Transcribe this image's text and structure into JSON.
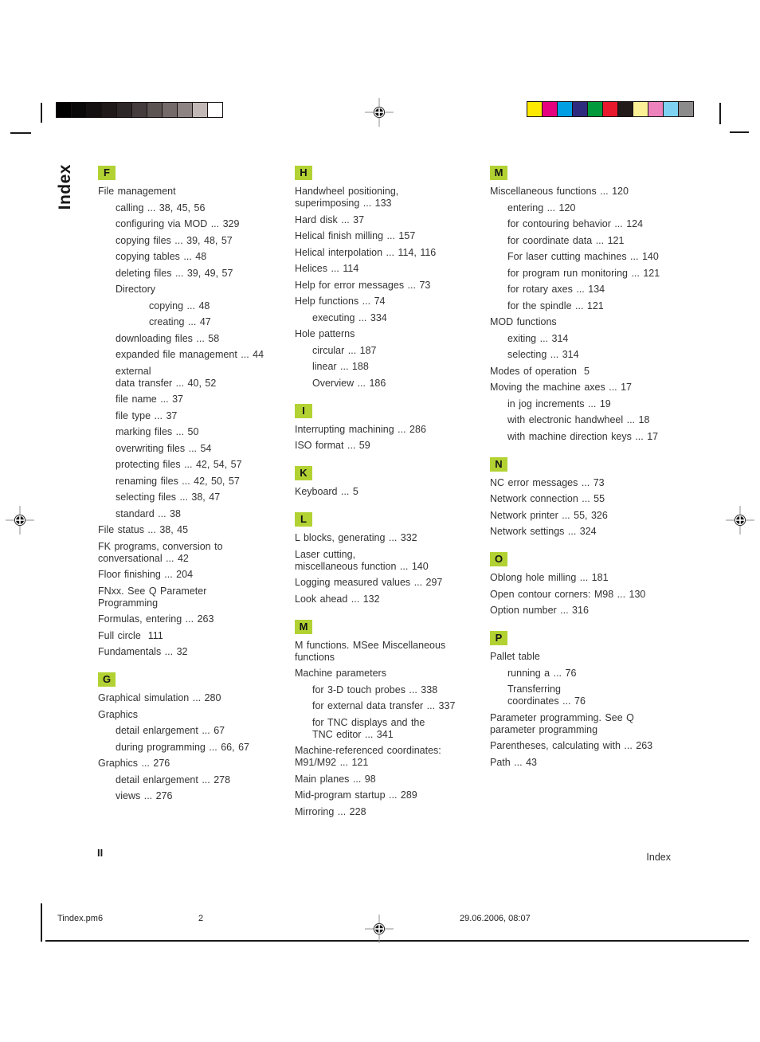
{
  "sidebar": {
    "label": "Index"
  },
  "footer": {
    "page_roman": "II",
    "right_label": "Index"
  },
  "print_info": {
    "file_name": "Tindex.pm6",
    "sheet_number": "2",
    "datetime": "29.06.2006, 08:07"
  },
  "colors": {
    "section_badge_bg": "#b2d233",
    "text": "#333333"
  },
  "calibration": {
    "grayscale": [
      "#000000",
      "#0b0809",
      "#140f10",
      "#1f191a",
      "#2e2727",
      "#453d3d",
      "#5c5353",
      "#746a6a",
      "#8d8383",
      "#c2b9b7",
      "#ffffff"
    ],
    "colors": [
      "#fde800",
      "#e6017e",
      "#009fe3",
      "#2e2a7e",
      "#009a3d",
      "#e8192c",
      "#231a1a",
      "#fbf095",
      "#ee82bd",
      "#7fd3f2",
      "#8b8b8b"
    ]
  },
  "index": {
    "columns": [
      {
        "sections": [
          {
            "letter": "F",
            "entries": [
              {
                "level": 0,
                "text": "File management"
              },
              {
                "level": 1,
                "text": "calling ... 38, 45, 56"
              },
              {
                "level": 1,
                "text": "configuring via MOD ... 329"
              },
              {
                "level": 1,
                "text": "copying files ... 39, 48, 57"
              },
              {
                "level": 1,
                "text": "copying tables ... 48"
              },
              {
                "level": 1,
                "text": "deleting files ... 39, 49, 57"
              },
              {
                "level": 1,
                "text": "Directory"
              },
              {
                "level": 2,
                "text": "copying ... 48"
              },
              {
                "level": 2,
                "text": "creating ... 47"
              },
              {
                "level": 1,
                "text": "downloading files ... 58"
              },
              {
                "level": 1,
                "text": "expanded file management ... 44"
              },
              {
                "level": 1,
                "text": "external\ndata transfer ... 40, 52"
              },
              {
                "level": 1,
                "text": "file name ... 37"
              },
              {
                "level": 1,
                "text": "file type ... 37"
              },
              {
                "level": 1,
                "text": "marking files ... 50"
              },
              {
                "level": 1,
                "text": "overwriting files ... 54"
              },
              {
                "level": 1,
                "text": "protecting files ... 42, 54, 57"
              },
              {
                "level": 1,
                "text": "renaming files ... 42, 50, 57"
              },
              {
                "level": 1,
                "text": "selecting files ... 38, 47"
              },
              {
                "level": 1,
                "text": "standard ... 38"
              },
              {
                "level": 0,
                "text": "File status ... 38, 45"
              },
              {
                "level": 0,
                "text": "FK programs, conversion to\nconversational ... 42"
              },
              {
                "level": 0,
                "text": "Floor finishing ... 204"
              },
              {
                "level": 0,
                "text": "FNxx. See Q Parameter\nProgramming"
              },
              {
                "level": 0,
                "text": "Formulas, entering ... 263"
              },
              {
                "level": 0,
                "text": "Full circle  111"
              },
              {
                "level": 0,
                "text": "Fundamentals ... 32"
              }
            ]
          },
          {
            "letter": "G",
            "entries": [
              {
                "level": 0,
                "text": "Graphical simulation ... 280"
              },
              {
                "level": 0,
                "text": "Graphics"
              },
              {
                "level": 1,
                "text": "detail enlargement ... 67"
              },
              {
                "level": 1,
                "text": "during programming ... 66, 67"
              },
              {
                "level": 0,
                "text": "Graphics ... 276"
              },
              {
                "level": 1,
                "text": "detail enlargement ... 278"
              },
              {
                "level": 1,
                "text": "views ... 276"
              }
            ]
          }
        ]
      },
      {
        "sections": [
          {
            "letter": "H",
            "entries": [
              {
                "level": 0,
                "text": "Handwheel positioning,\nsuperimposing ... 133"
              },
              {
                "level": 0,
                "text": "Hard disk ... 37"
              },
              {
                "level": 0,
                "text": "Helical finish milling ... 157"
              },
              {
                "level": 0,
                "text": "Helical interpolation ... 114, 116"
              },
              {
                "level": 0,
                "text": "Helices ... 114"
              },
              {
                "level": 0,
                "text": "Help for error messages ... 73"
              },
              {
                "level": 0,
                "text": "Help functions ... 74"
              },
              {
                "level": 1,
                "text": "executing ... 334"
              },
              {
                "level": 0,
                "text": "Hole patterns"
              },
              {
                "level": 1,
                "text": "circular ... 187"
              },
              {
                "level": 1,
                "text": "linear ... 188"
              },
              {
                "level": 1,
                "text": "Overview ... 186"
              }
            ]
          },
          {
            "letter": "I",
            "entries": [
              {
                "level": 0,
                "text": "Interrupting machining ... 286"
              },
              {
                "level": 0,
                "text": "ISO format ... 59"
              }
            ]
          },
          {
            "letter": "K",
            "entries": [
              {
                "level": 0,
                "text": "Keyboard ... 5"
              }
            ]
          },
          {
            "letter": "L",
            "entries": [
              {
                "level": 0,
                "text": "L blocks, generating ... 332"
              },
              {
                "level": 0,
                "text": "Laser cutting,\nmiscellaneous function ... 140"
              },
              {
                "level": 0,
                "text": "Logging measured values ... 297"
              },
              {
                "level": 0,
                "text": "Look ahead ... 132"
              }
            ]
          },
          {
            "letter": "M",
            "entries": [
              {
                "level": 0,
                "text": "M functions. MSee Miscellaneous\nfunctions"
              },
              {
                "level": 0,
                "text": "Machine parameters"
              },
              {
                "level": 1,
                "text": "for 3-D touch probes ... 338"
              },
              {
                "level": 1,
                "text": "for external data transfer ... 337"
              },
              {
                "level": 1,
                "text": "for TNC displays and the\nTNC editor ... 341"
              },
              {
                "level": 0,
                "text": "Machine-referenced coordinates:\nM91/M92 ... 121"
              },
              {
                "level": 0,
                "text": "Main planes ... 98"
              },
              {
                "level": 0,
                "text": "Mid-program startup ... 289"
              },
              {
                "level": 0,
                "text": "Mirroring ... 228"
              }
            ]
          }
        ]
      },
      {
        "sections": [
          {
            "letter": "M",
            "entries": [
              {
                "level": 0,
                "text": "Miscellaneous functions ... 120"
              },
              {
                "level": 1,
                "text": "entering ... 120"
              },
              {
                "level": 1,
                "text": "for contouring behavior ... 124"
              },
              {
                "level": 1,
                "text": "for coordinate data ... 121"
              },
              {
                "level": 1,
                "text": "For laser cutting machines ... 140"
              },
              {
                "level": 1,
                "text": "for program run monitoring ... 121"
              },
              {
                "level": 1,
                "text": "for rotary axes ... 134"
              },
              {
                "level": 1,
                "text": "for the spindle ... 121"
              },
              {
                "level": 0,
                "text": "MOD functions"
              },
              {
                "level": 1,
                "text": "exiting ... 314"
              },
              {
                "level": 1,
                "text": "selecting ... 314"
              },
              {
                "level": 0,
                "text": "Modes of operation  5"
              },
              {
                "level": 0,
                "text": "Moving the machine axes ... 17"
              },
              {
                "level": 1,
                "text": "in jog increments ... 19"
              },
              {
                "level": 1,
                "text": "with electronic handwheel ... 18"
              },
              {
                "level": 1,
                "text": "with machine direction keys ... 17"
              }
            ]
          },
          {
            "letter": "N",
            "entries": [
              {
                "level": 0,
                "text": "NC error messages ... 73"
              },
              {
                "level": 0,
                "text": "Network connection ... 55"
              },
              {
                "level": 0,
                "text": "Network printer ... 55, 326"
              },
              {
                "level": 0,
                "text": "Network settings ... 324"
              }
            ]
          },
          {
            "letter": "O",
            "entries": [
              {
                "level": 0,
                "text": "Oblong hole milling ... 181"
              },
              {
                "level": 0,
                "text": "Open contour corners: M98 ... 130"
              },
              {
                "level": 0,
                "text": "Option number ... 316"
              }
            ]
          },
          {
            "letter": "P",
            "entries": [
              {
                "level": 0,
                "text": "Pallet table"
              },
              {
                "level": 1,
                "text": "running a ... 76"
              },
              {
                "level": 1,
                "text": "Transferring\ncoordinates ... 76"
              },
              {
                "level": 0,
                "text": "Parameter programming. See Q\nparameter programming"
              },
              {
                "level": 0,
                "text": "Parentheses, calculating with ... 263"
              },
              {
                "level": 0,
                "text": "Path ... 43"
              }
            ]
          }
        ]
      }
    ]
  }
}
